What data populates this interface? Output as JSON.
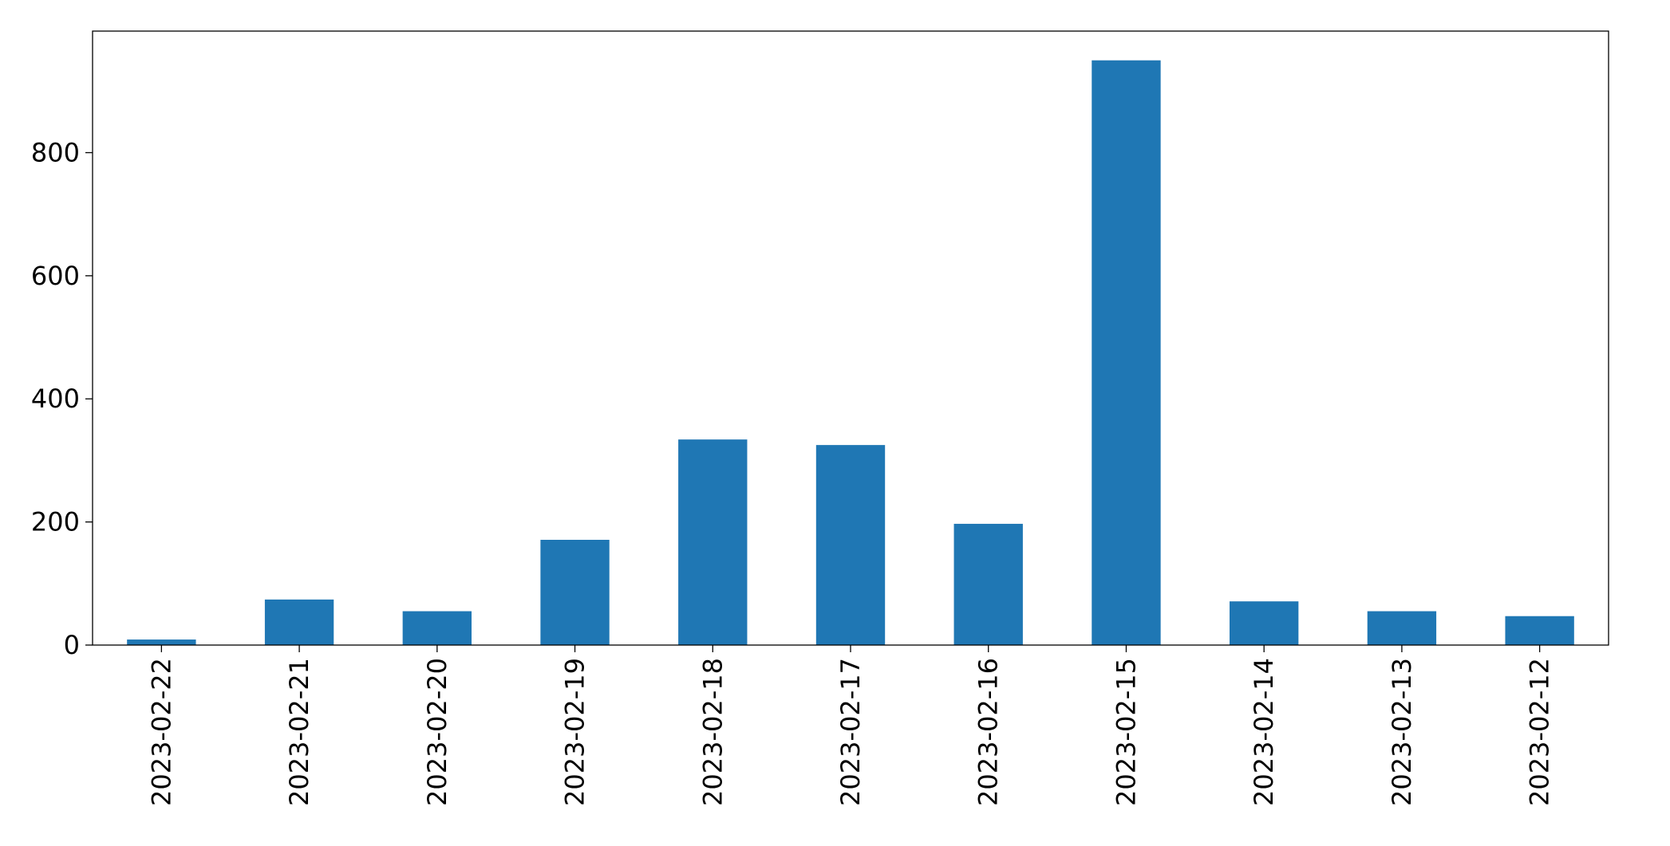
{
  "chart_data": {
    "type": "bar",
    "categories": [
      "2023-02-22",
      "2023-02-21",
      "2023-02-20",
      "2023-02-19",
      "2023-02-18",
      "2023-02-17",
      "2023-02-16",
      "2023-02-15",
      "2023-02-14",
      "2023-02-13",
      "2023-02-12"
    ],
    "values": [
      9,
      74,
      55,
      171,
      334,
      325,
      197,
      950,
      71,
      55,
      47
    ],
    "color": "#1f77b4",
    "ylim": [
      0,
      997.5
    ],
    "yticks": [
      0,
      200,
      400,
      600,
      800
    ],
    "grid": false
  }
}
